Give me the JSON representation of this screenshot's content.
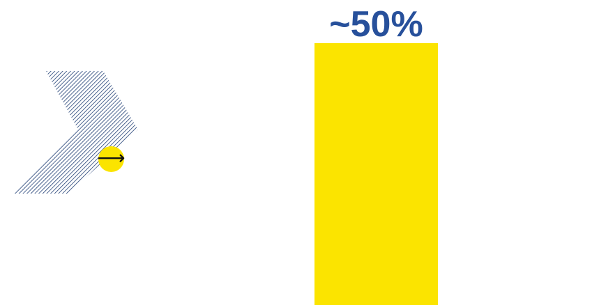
{
  "decor": {
    "chevron_icon": "hatched-chevron-right",
    "arrow_icon": "arrow-right-icon",
    "arrow_glyph": "⟶"
  },
  "colors": {
    "bar": "#fbe400",
    "label": "#27509b",
    "hatch": "#1f3e74"
  },
  "chart_data": {
    "type": "bar",
    "categories": [
      ""
    ],
    "values": [
      50
    ],
    "data_labels": [
      "~50%"
    ],
    "ylim": [
      0,
      50
    ],
    "title": "",
    "xlabel": "",
    "ylabel": "",
    "grid": false,
    "legend": "none"
  }
}
